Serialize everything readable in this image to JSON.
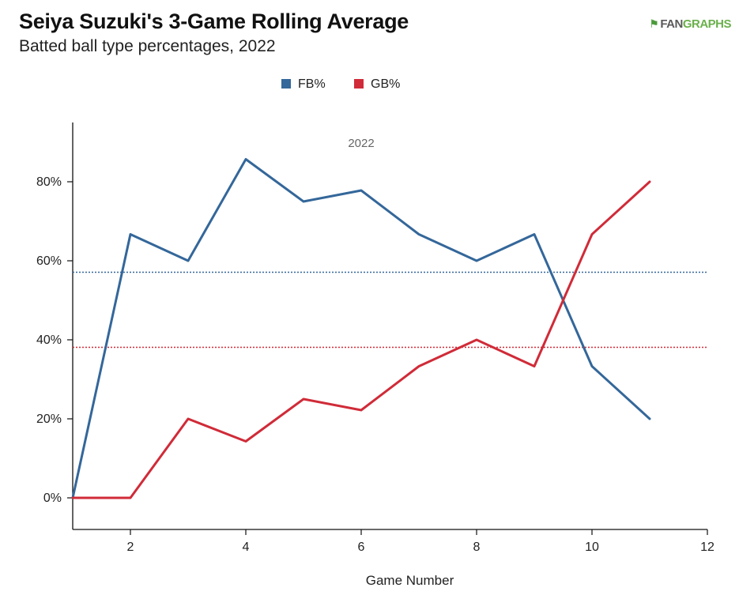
{
  "header": {
    "title": "Seiya Suzuki's 3-Game Rolling Average",
    "subtitle": "Batted ball type percentages, 2022",
    "logo_mark": "⚑",
    "logo_fan": "FAN",
    "logo_graphs": "GRAPHS"
  },
  "chart_data": {
    "type": "line",
    "title": "Seiya Suzuki's 3-Game Rolling Average",
    "subtitle": "Batted ball type percentages, 2022",
    "xlabel": "Game Number",
    "ylabel": "",
    "xlim": [
      1,
      12
    ],
    "ylim": [
      -8,
      95
    ],
    "x_ticks": [
      2,
      4,
      6,
      8,
      10,
      12
    ],
    "y_ticks": [
      0,
      20,
      40,
      60,
      80
    ],
    "y_tick_labels": [
      "0%",
      "20%",
      "40%",
      "60%",
      "80%"
    ],
    "annotation": "2022",
    "legend_position": "top-center",
    "series": [
      {
        "name": "FB%",
        "color": "#34679a",
        "x": [
          1,
          2,
          3,
          4,
          5,
          6,
          7,
          8,
          9,
          10,
          11
        ],
        "values": [
          0,
          66.7,
          60,
          85.7,
          75,
          77.8,
          66.7,
          60,
          66.7,
          33.3,
          20
        ],
        "average": 57.1
      },
      {
        "name": "GB%",
        "color": "#d02b38",
        "x": [
          1,
          2,
          3,
          4,
          5,
          6,
          7,
          8,
          9,
          10,
          11
        ],
        "values": [
          0,
          0,
          20,
          14.3,
          25,
          22.2,
          33.3,
          40,
          33.3,
          66.7,
          80
        ],
        "average": 38.1
      }
    ]
  }
}
